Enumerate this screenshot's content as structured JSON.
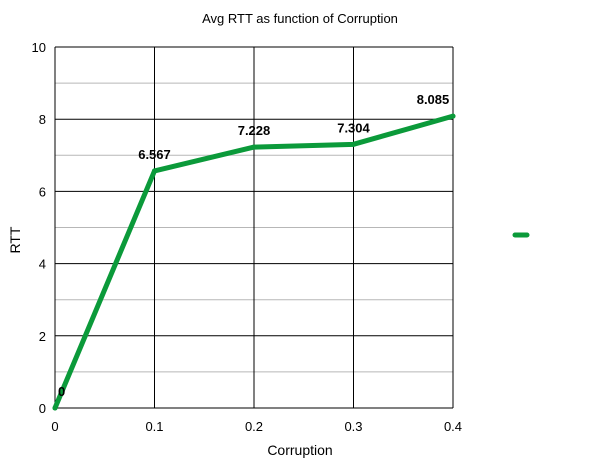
{
  "chart_data": {
    "type": "line",
    "title": "Avg RTT as function of Corruption",
    "xlabel": "Corruption",
    "ylabel": "RTT",
    "x": [
      0,
      0.1,
      0.2,
      0.3,
      0.4
    ],
    "x_tick_labels": [
      "0",
      "0.1",
      "0.2",
      "0.3",
      "0.4"
    ],
    "xlim": [
      0,
      0.4
    ],
    "ylim": [
      0,
      10
    ],
    "y_ticks": [
      0,
      2,
      4,
      6,
      8,
      10
    ],
    "y_tick_labels": [
      "0",
      "2",
      "4",
      "6",
      "8",
      "10"
    ],
    "y_minor_step": 1,
    "grid": true,
    "legend": "right",
    "series": [
      {
        "name": "",
        "color": "#0b9a3a",
        "values": [
          0,
          6.567,
          7.228,
          7.304,
          8.085
        ],
        "data_labels": [
          "0",
          "6.567",
          "7.228",
          "7.304",
          "8.085"
        ]
      }
    ]
  }
}
